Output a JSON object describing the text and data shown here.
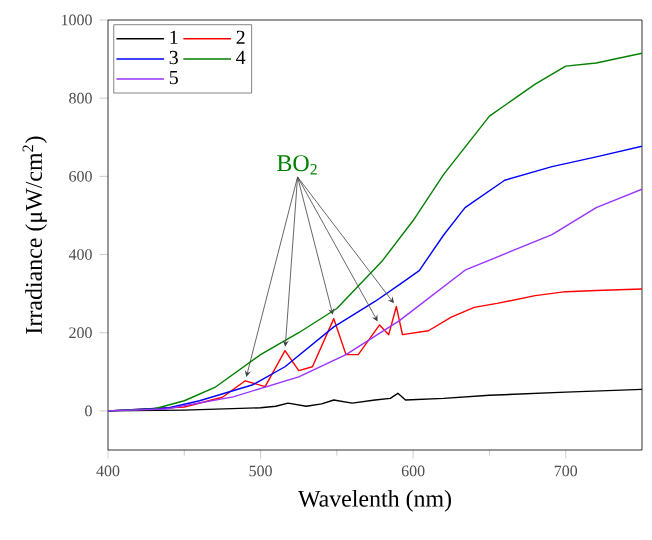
{
  "chart_data": {
    "type": "line",
    "xlabel": "Wavelenth (nm)",
    "ylabel": "Irradiance (μW/cm$^{2}$)",
    "xlim": [
      400,
      750
    ],
    "xticks": [
      400,
      500,
      600,
      700
    ],
    "ylim": [
      -100,
      1000
    ],
    "yticks": [
      0,
      200,
      400,
      600,
      800,
      1000
    ],
    "legend": "top left",
    "grid": false,
    "annotations": [
      {
        "text": "BO$_{2}$",
        "x": 548,
        "y": 236
      }
    ],
    "series": [
      {
        "name": "1",
        "color": "#000000",
        "x": [
          400,
          450,
          500,
          510,
          518,
          530,
          540,
          548,
          560,
          575,
          585,
          590,
          595,
          620,
          650,
          700,
          750
        ],
        "values": [
          0,
          2,
          8,
          12,
          20,
          12,
          18,
          28,
          20,
          28,
          32,
          45,
          28,
          32,
          40,
          48,
          55
        ]
      },
      {
        "name": "2",
        "color": "#ff0000",
        "x": [
          400,
          450,
          475,
          490,
          503,
          516,
          525,
          534,
          548,
          556,
          564,
          578,
          584,
          589,
          593,
          610,
          625,
          640,
          655,
          680,
          700,
          720,
          750
        ],
        "values": [
          0,
          10,
          35,
          77,
          62,
          154,
          103,
          113,
          236,
          144,
          144,
          220,
          195,
          267,
          195,
          205,
          240,
          265,
          275,
          295,
          305,
          308,
          312
        ]
      },
      {
        "name": "3",
        "color": "#0000ff",
        "x": [
          400,
          440,
          460,
          495,
          516,
          548,
          575,
          591,
          604,
          620,
          634,
          660,
          691,
          720,
          750
        ],
        "values": [
          0,
          8,
          26,
          67,
          113,
          215,
          280,
          323,
          359,
          450,
          520,
          590,
          625,
          650,
          677
        ]
      },
      {
        "name": "4",
        "color": "#008000",
        "x": [
          400,
          430,
          450,
          470,
          500,
          525,
          550,
          580,
          600,
          620,
          650,
          680,
          700,
          720,
          750
        ],
        "values": [
          0,
          5,
          26,
          60,
          144,
          200,
          262,
          385,
          487,
          605,
          754,
          836,
          882,
          890,
          915
        ]
      },
      {
        "name": "5",
        "color": "#9933ff",
        "x": [
          400,
          438,
          482,
          525,
          556,
          591,
          634,
          691,
          720,
          750
        ],
        "values": [
          0,
          5,
          36,
          87,
          144,
          231,
          360,
          451,
          520,
          567
        ]
      }
    ]
  }
}
